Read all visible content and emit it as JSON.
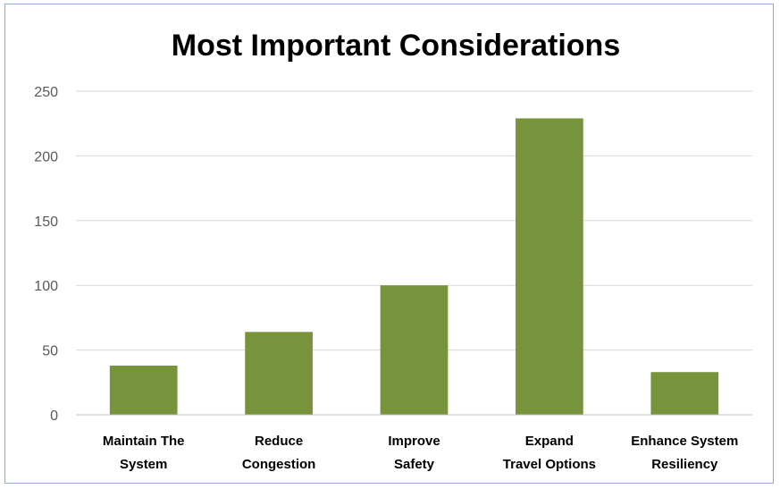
{
  "chart_data": {
    "type": "bar",
    "title": "Most Important Considerations",
    "xlabel": "",
    "ylabel": "",
    "categories": [
      [
        "Maintain The",
        "System"
      ],
      [
        "Reduce",
        "Congestion"
      ],
      [
        "Improve",
        "Safety"
      ],
      [
        "Expand",
        "Travel Options"
      ],
      [
        "Enhance System",
        "Resiliency"
      ]
    ],
    "values": [
      38,
      64,
      100,
      229,
      33
    ],
    "ylim": [
      0,
      250
    ],
    "yticks": [
      0,
      50,
      100,
      150,
      200,
      250
    ],
    "grid": true,
    "bar_color": "#77933c",
    "grid_color": "#d9d9d9",
    "axis_color": "#bfbfbf"
  }
}
